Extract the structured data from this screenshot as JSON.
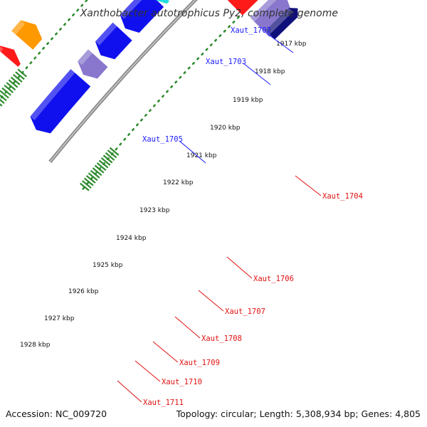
{
  "title": "Xanthobacter autotrophicus Py2, complete genome",
  "footer": {
    "accession": "Accession: NC_009720",
    "stats": "Topology: circular; Length: 5,308,934 bp; Genes: 4,805"
  },
  "kbp_labels": [
    "1917 kbp",
    "1918 kbp",
    "1919 kbp",
    "1920 kbp",
    "1921 kbp",
    "1922 kbp",
    "1923 kbp",
    "1924 kbp",
    "1925 kbp",
    "1926 kbp",
    "1927 kbp",
    "1928 kbp"
  ],
  "gene_labels": [
    {
      "name": "Xaut_1702",
      "strand": "forward"
    },
    {
      "name": "Xaut_1703",
      "strand": "forward"
    },
    {
      "name": "Xaut_1705",
      "strand": "forward"
    },
    {
      "name": "Xaut_1704",
      "strand": "reverse"
    },
    {
      "name": "Xaut_1706",
      "strand": "reverse"
    },
    {
      "name": "Xaut_1707",
      "strand": "reverse"
    },
    {
      "name": "Xaut_1708",
      "strand": "reverse"
    },
    {
      "name": "Xaut_1709",
      "strand": "reverse"
    },
    {
      "name": "Xaut_1710",
      "strand": "reverse"
    },
    {
      "name": "Xaut_1711",
      "strand": "reverse"
    }
  ],
  "colors": {
    "forward_label": "#1a1aff",
    "reverse_label": "#e01010",
    "backbone": "#8a8a8a",
    "tick_dots": "#2e8b2e",
    "red": "#ff1a1a",
    "blue": "#1010ee",
    "lavender": "#8877cc",
    "navy": "#10107a",
    "cyan": "#22dddd",
    "steel": "#4a7fb5",
    "grey": "#c4c4c4",
    "orange": "#ff9900"
  }
}
